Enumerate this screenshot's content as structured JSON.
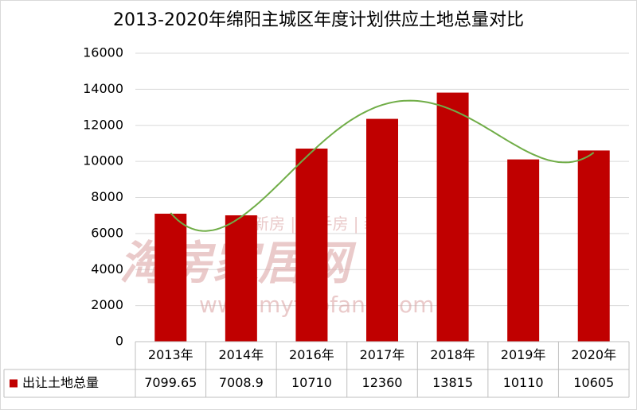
{
  "chart_data": {
    "type": "bar",
    "title": "2013-2020年绵阳主城区年度计划供应土地总量对比",
    "categories": [
      "2013年",
      "2014年",
      "2016年",
      "2017年",
      "2018年",
      "2019年",
      "2020年"
    ],
    "series": [
      {
        "name": "出让土地总量",
        "color": "#c00000",
        "values": [
          7099.65,
          7008.9,
          10710,
          12360,
          13815,
          10110,
          10605
        ]
      }
    ],
    "ylim": [
      0,
      16000
    ],
    "yticks": [
      0,
      2000,
      4000,
      6000,
      8000,
      10000,
      12000,
      14000,
      16000
    ],
    "grid": true,
    "data_table": true,
    "trendline": {
      "kind": "polynomial",
      "color": "#70ad47"
    },
    "watermark": [
      "新房 | 二手房 | 装修",
      "淘房家居网",
      "www.mytaofang.com"
    ]
  }
}
